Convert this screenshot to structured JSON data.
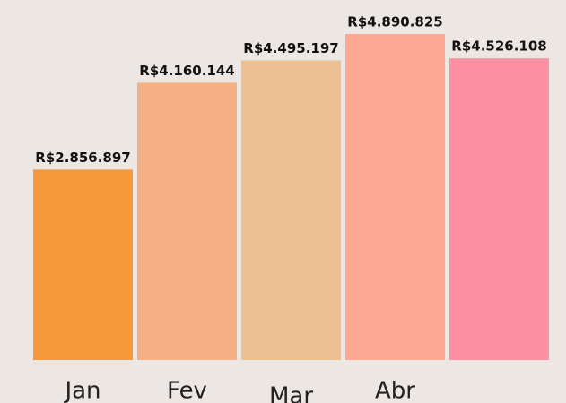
{
  "chart_data": {
    "type": "bar",
    "categories": [
      "Jan",
      "Fev",
      "Mar",
      "Abr",
      null
    ],
    "values": [
      2856897,
      4160144,
      4495197,
      4890825,
      4526108
    ],
    "value_labels": [
      "R$2.856.897",
      "R$4.160.144",
      "R$4.495.197",
      "R$4.890.825",
      "R$4.526.108"
    ],
    "colors": [
      "#f7983a",
      "#f5b085",
      "#ecc092",
      "#fda994",
      "#fd91a3"
    ]
  }
}
